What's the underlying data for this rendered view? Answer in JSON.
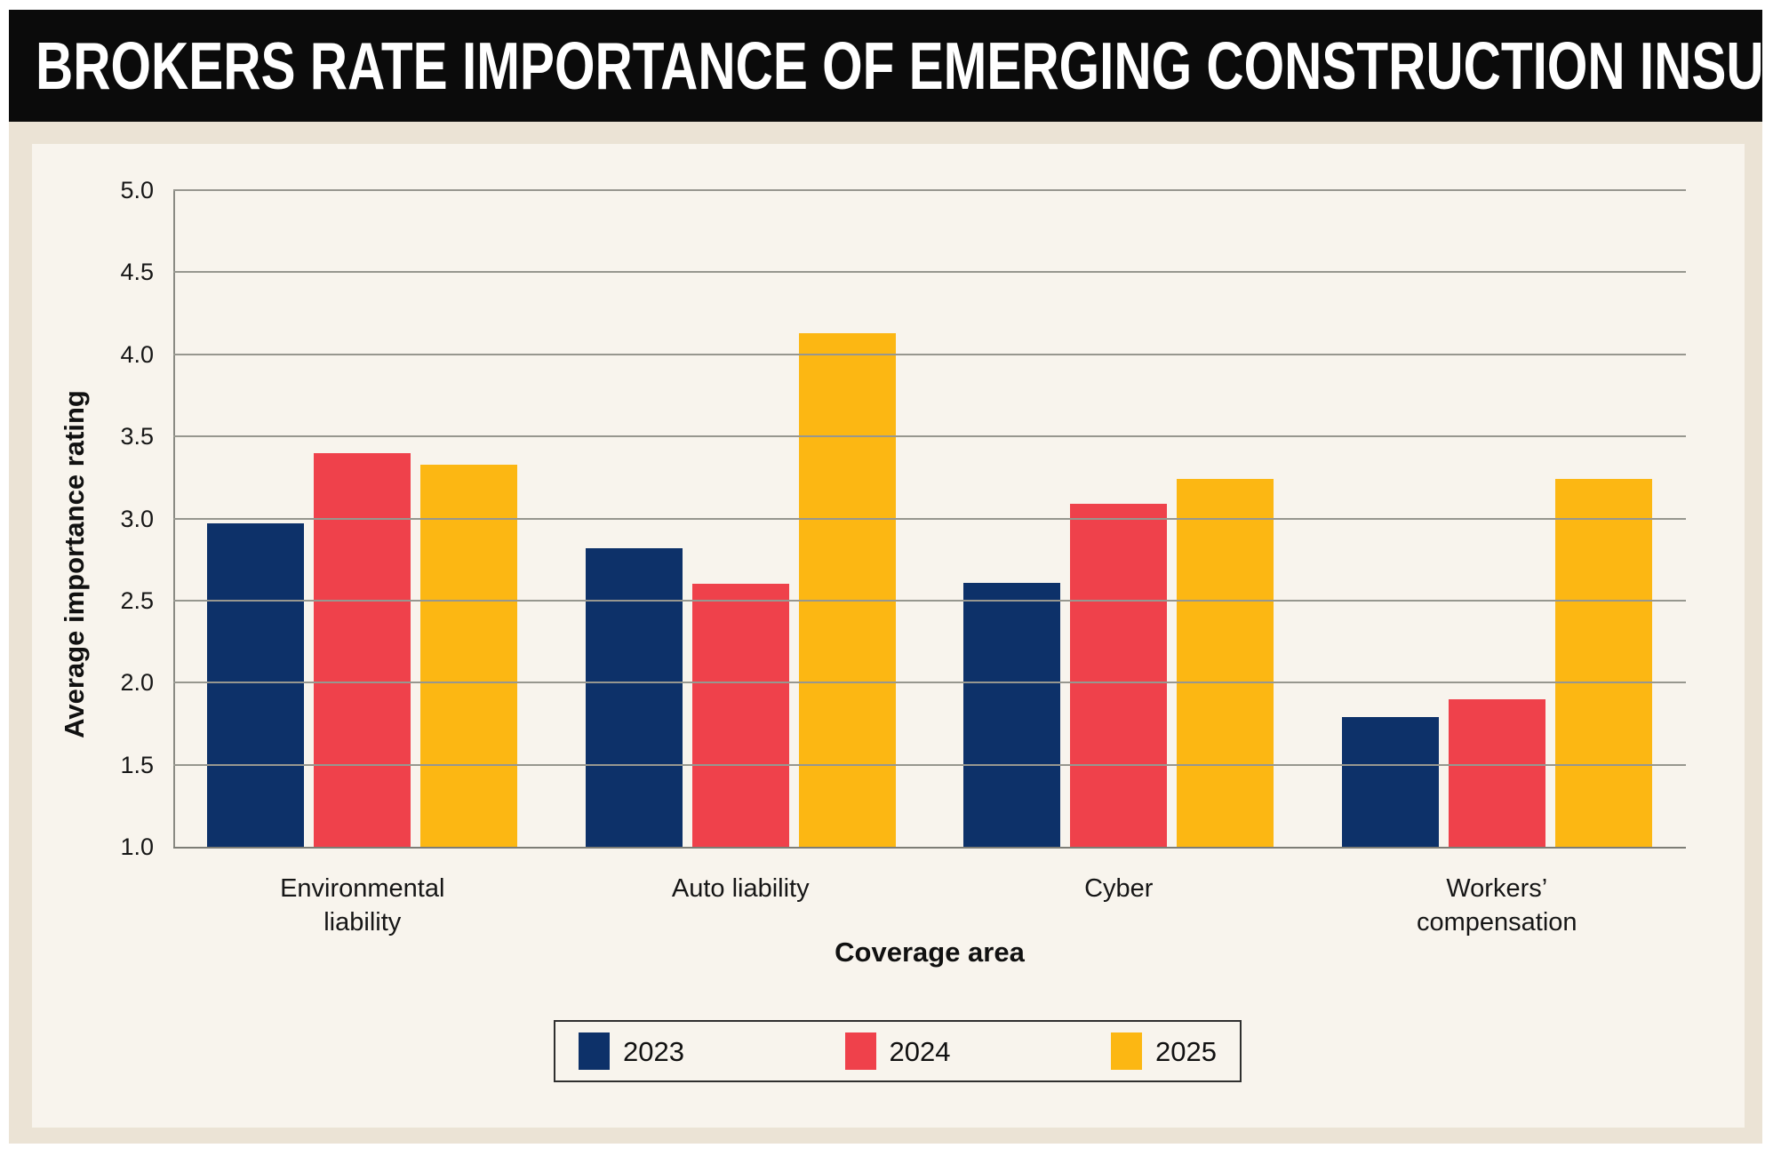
{
  "header": {
    "title": "BROKERS RATE IMPORTANCE OF EMERGING CONSTRUCTION INSURANCE LINES"
  },
  "chart_data": {
    "type": "bar",
    "title": "Brokers rate importance of emerging construction insurance lines",
    "categories": [
      "Environmental liability",
      "Auto liability",
      "Cyber",
      "Workers’ compensation"
    ],
    "series": [
      {
        "name": "2023",
        "color": "#0d3169",
        "values": [
          2.97,
          2.82,
          2.61,
          1.79
        ]
      },
      {
        "name": "2024",
        "color": "#ef414b",
        "values": [
          3.4,
          2.6,
          3.09,
          1.9
        ]
      },
      {
        "name": "2025",
        "color": "#fcb713",
        "values": [
          3.33,
          4.13,
          3.24,
          3.24
        ]
      }
    ],
    "xlabel": "Coverage area",
    "ylabel": "Average importance rating",
    "ylim": [
      1.0,
      5.0
    ],
    "ytick_step": 0.5,
    "ytick_labels": [
      "5.0",
      "4.5",
      "4.0",
      "3.5",
      "3.0",
      "2.5",
      "2.0",
      "1.5",
      "1.0"
    ],
    "grid": true,
    "legend_position": "bottom"
  },
  "colors": {
    "header_bg": "#0b0b0b",
    "panel_beige": "#ebe3d5",
    "card_cream": "#f8f4ed",
    "gridline": "#97978f",
    "axis": "#7d7d76"
  }
}
